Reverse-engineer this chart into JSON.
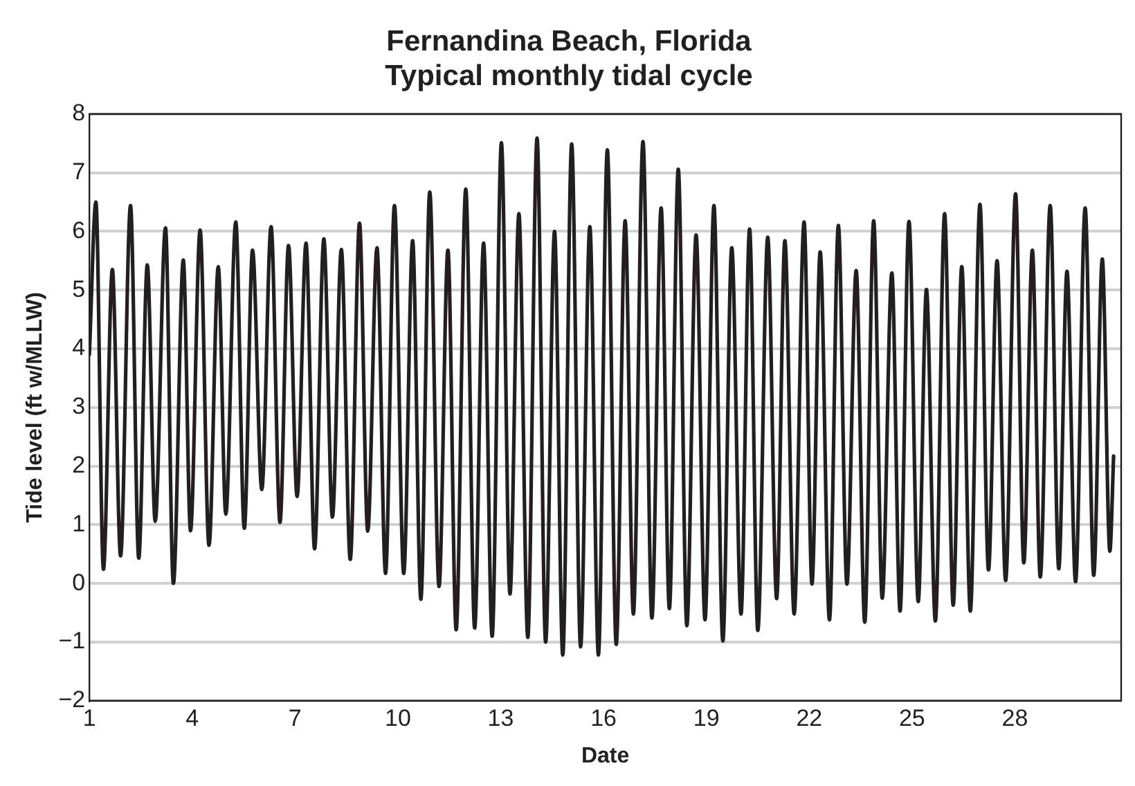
{
  "chart_data": {
    "type": "line",
    "title": "Fernandina Beach, Florida",
    "subtitle": "Typical monthly tidal cycle",
    "xlabel": "Date",
    "ylabel": "Tide level (ft w/MLLW)",
    "xlim": [
      1,
      31.1
    ],
    "xticks": [
      1,
      4,
      7,
      10,
      13,
      16,
      19,
      22,
      25,
      28
    ],
    "ylim": [
      -2,
      8
    ],
    "yticks": [
      {
        "value": -2,
        "label": "−2"
      },
      {
        "value": -1,
        "label": "−1"
      },
      0,
      1,
      2,
      3,
      4,
      5,
      6,
      7,
      8
    ],
    "grid": "y",
    "legend": false,
    "marker": "none",
    "line_style": "solid",
    "series": [
      {
        "color": "#231f20",
        "x": [
          1.0,
          1.19,
          1.41,
          1.67,
          1.91,
          2.2,
          2.44,
          2.69,
          2.92,
          3.22,
          3.45,
          3.74,
          3.95,
          4.23,
          4.49,
          4.76,
          4.98,
          5.27,
          5.52,
          5.76,
          6.03,
          6.3,
          6.56,
          6.81,
          7.06,
          7.32,
          7.57,
          7.84,
          8.09,
          8.35,
          8.61,
          8.88,
          9.12,
          9.39,
          9.64,
          9.9,
          10.17,
          10.43,
          10.67,
          10.93,
          11.2,
          11.46,
          11.7,
          11.98,
          12.24,
          12.5,
          12.75,
          13.02,
          13.27,
          13.53,
          13.79,
          14.06,
          14.31,
          14.57,
          14.81,
          15.07,
          15.33,
          15.6,
          15.85,
          16.11,
          16.37,
          16.63,
          16.87,
          17.15,
          17.41,
          17.68,
          17.92,
          18.18,
          18.43,
          18.7,
          18.96,
          19.22,
          19.48,
          19.74,
          20.01,
          20.26,
          20.5,
          20.79,
          21.05,
          21.29,
          21.56,
          21.85,
          22.08,
          22.32,
          22.59,
          22.85,
          23.1,
          23.37,
          23.62,
          23.88,
          24.13,
          24.41,
          24.65,
          24.91,
          25.18,
          25.42,
          25.68,
          25.95,
          26.2,
          26.45,
          26.7,
          26.98,
          27.23,
          27.48,
          27.73,
          28.02,
          28.26,
          28.51,
          28.74,
          29.03,
          29.28,
          29.52,
          29.77,
          30.05,
          30.3,
          30.55,
          30.77,
          30.88
        ],
        "values": [
          3.9,
          6.5,
          0.24,
          5.35,
          0.47,
          6.44,
          0.43,
          5.43,
          1.06,
          6.06,
          0.0,
          5.51,
          0.9,
          6.02,
          0.65,
          5.4,
          1.18,
          6.16,
          0.94,
          5.68,
          1.6,
          6.08,
          1.04,
          5.76,
          1.48,
          5.8,
          0.59,
          5.87,
          1.13,
          5.69,
          0.41,
          6.14,
          0.89,
          5.72,
          0.17,
          6.44,
          0.17,
          5.84,
          -0.27,
          6.67,
          -0.05,
          5.68,
          -0.79,
          6.72,
          -0.76,
          5.8,
          -0.9,
          7.51,
          -0.18,
          6.3,
          -0.92,
          7.59,
          -1.0,
          6.0,
          -1.22,
          7.49,
          -1.08,
          6.08,
          -1.22,
          7.39,
          -1.04,
          6.18,
          -0.52,
          7.53,
          -0.59,
          6.4,
          -0.43,
          7.06,
          -0.72,
          5.94,
          -0.62,
          6.44,
          -0.98,
          5.72,
          -0.52,
          6.04,
          -0.8,
          5.9,
          -0.26,
          5.84,
          -0.52,
          6.16,
          -0.01,
          5.65,
          -0.62,
          6.1,
          -0.01,
          5.33,
          -0.66,
          6.18,
          -0.25,
          5.29,
          -0.47,
          6.17,
          -0.31,
          5.01,
          -0.64,
          6.3,
          -0.37,
          5.4,
          -0.47,
          6.46,
          0.23,
          5.5,
          0.05,
          6.64,
          0.35,
          5.68,
          0.11,
          6.44,
          0.25,
          5.32,
          0.03,
          6.4,
          0.14,
          5.53,
          0.55,
          2.17
        ]
      }
    ]
  }
}
